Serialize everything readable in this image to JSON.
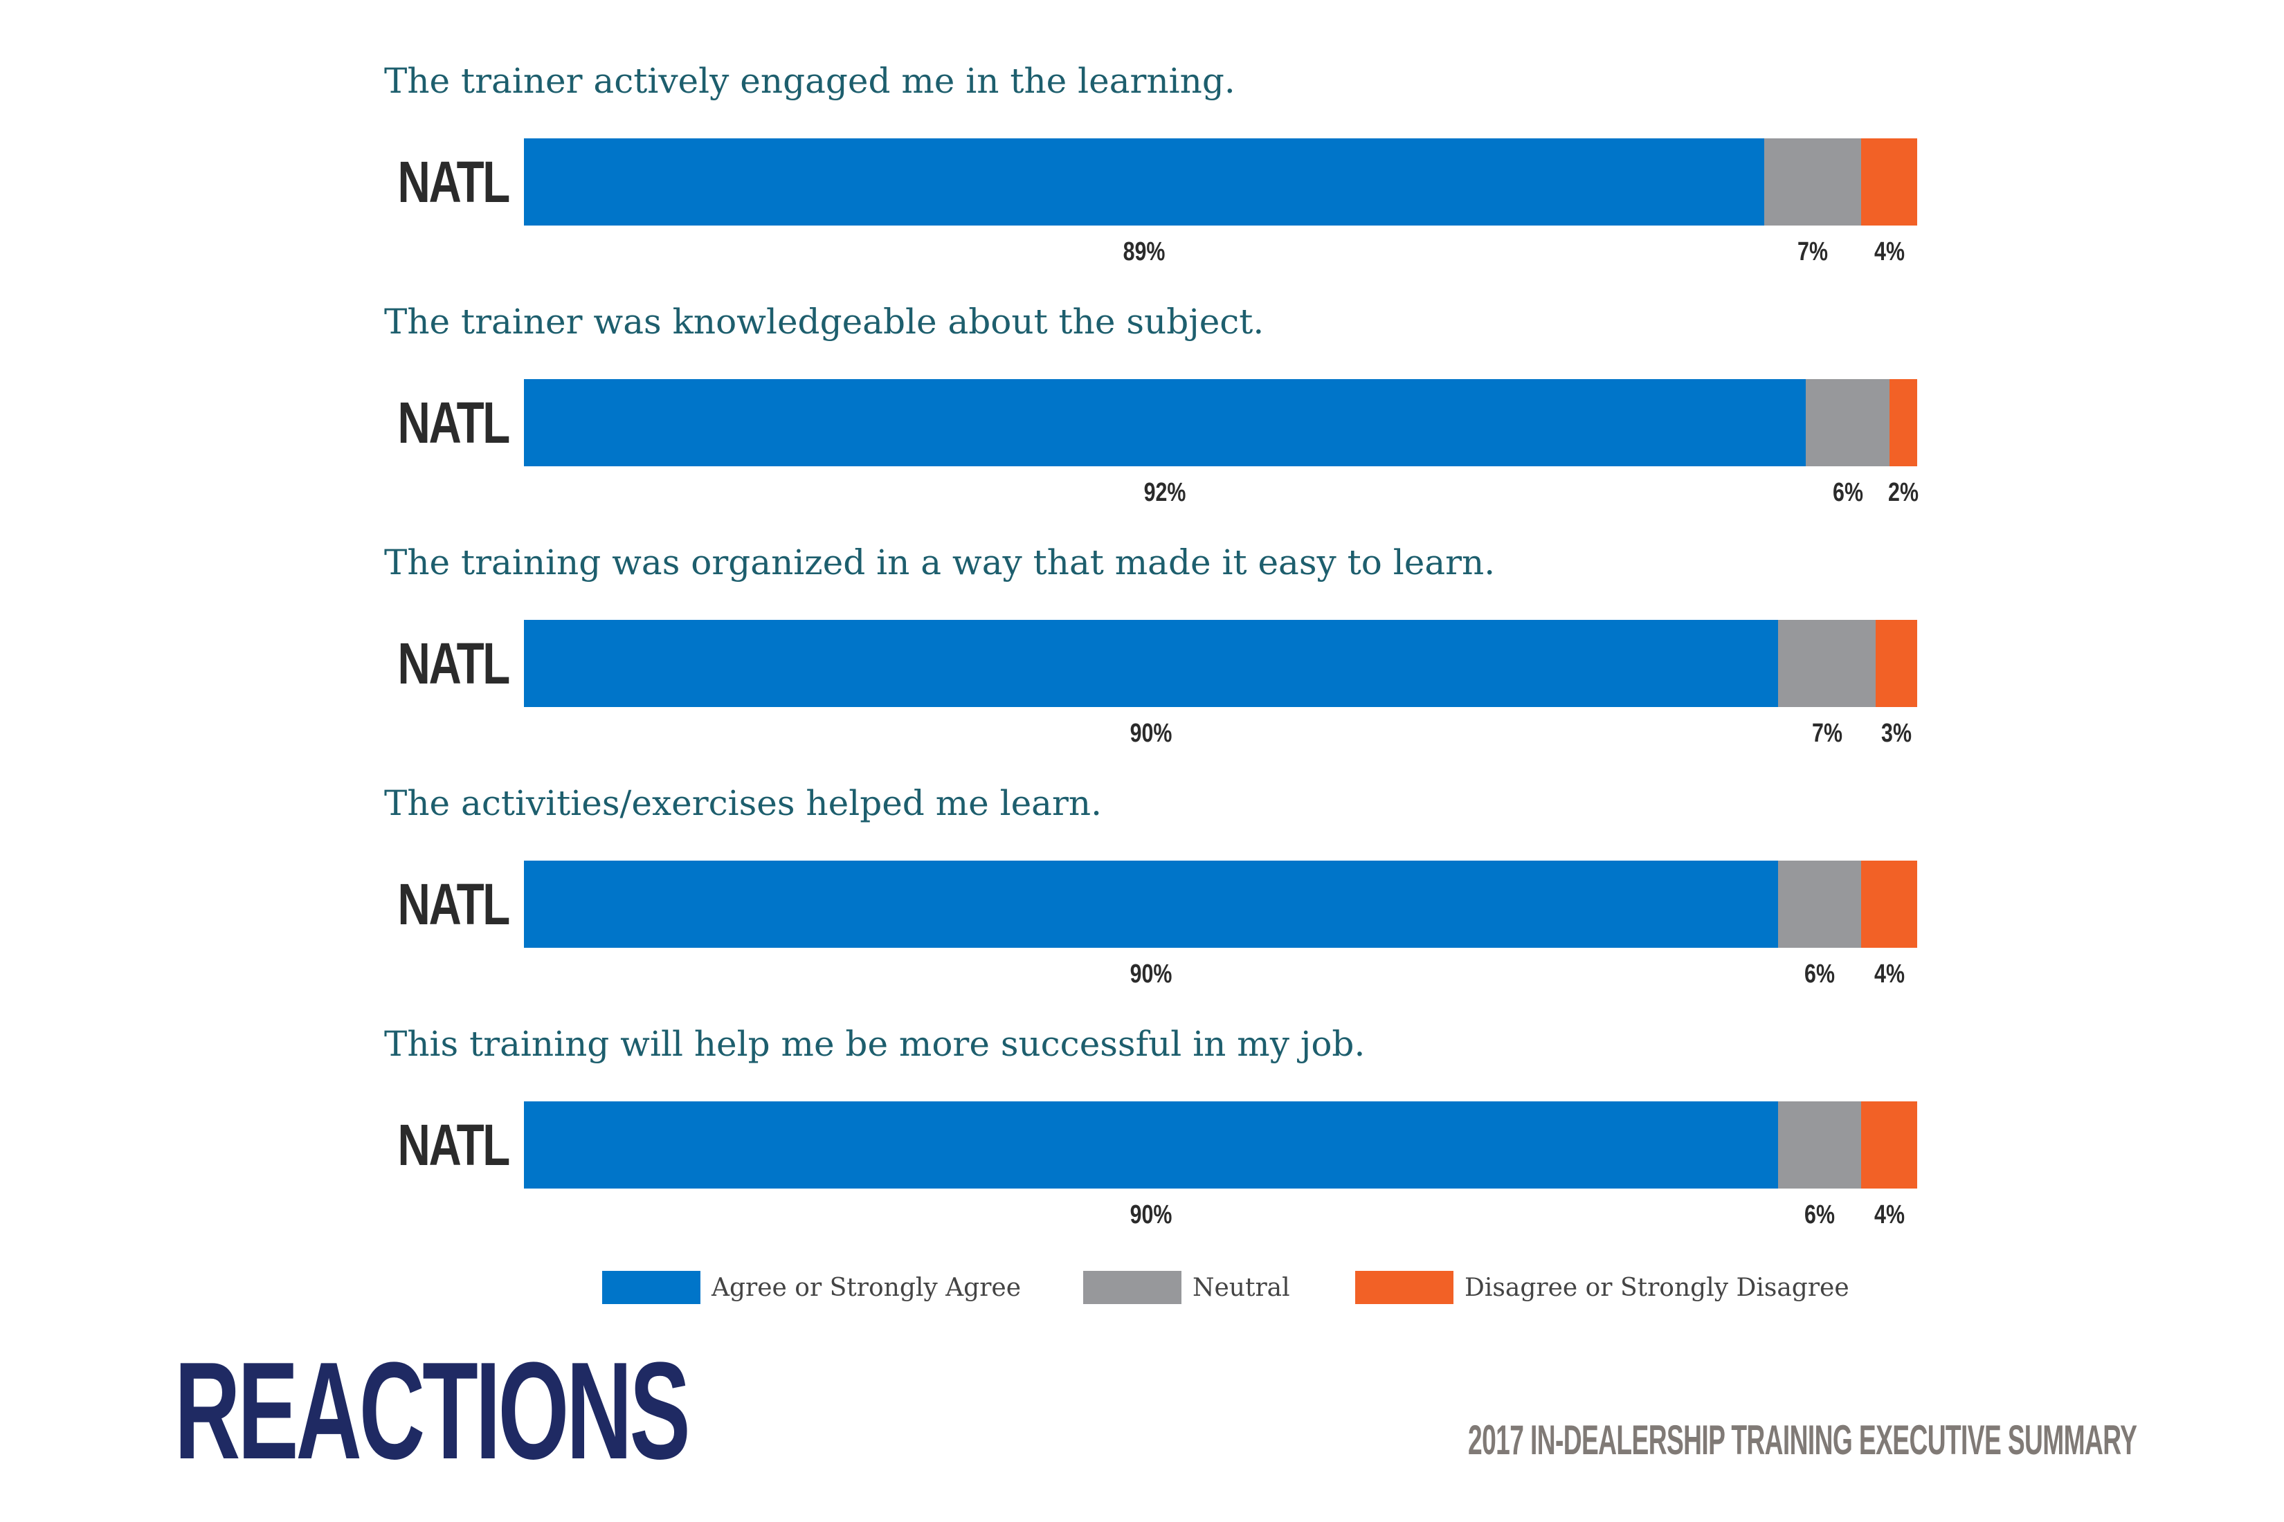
{
  "colors": {
    "agree": "#0075c9",
    "neutral": "#97989b",
    "disagree": "#f26126",
    "question_text": "#1d5e6d",
    "title": "#1f2a63",
    "subtitle": "#807a76"
  },
  "chart_data": {
    "type": "bar",
    "orientation": "horizontal",
    "stacked": true,
    "categories": [
      "The trainer actively engaged me in the learning.",
      "The trainer was knowledgeable about the subject.",
      "The training was organized in a way that made it easy to learn.",
      "The activities/exercises helped me learn.",
      "This training will help me be more successful in my job."
    ],
    "row_label": "NATL",
    "series": [
      {
        "name": "Agree or Strongly Agree",
        "values": [
          89,
          92,
          90,
          90,
          90
        ],
        "labels": [
          "89%",
          "92%",
          "90%",
          "90%",
          "90%"
        ]
      },
      {
        "name": "Neutral",
        "values": [
          7,
          6,
          7,
          6,
          6
        ],
        "labels": [
          "7%",
          "6%",
          "7%",
          "6%",
          "6%"
        ]
      },
      {
        "name": "Disagree or Strongly Disagree",
        "values": [
          4,
          2,
          3,
          4,
          4
        ],
        "labels": [
          "4%",
          "2%",
          "3%",
          "4%",
          "4%"
        ]
      }
    ],
    "xlim": [
      0,
      100
    ],
    "legend_position": "bottom"
  },
  "footer": {
    "title": "REACTIONS",
    "subtitle": "2017 IN-DEALERSHIP TRAINING EXECUTIVE SUMMARY"
  }
}
